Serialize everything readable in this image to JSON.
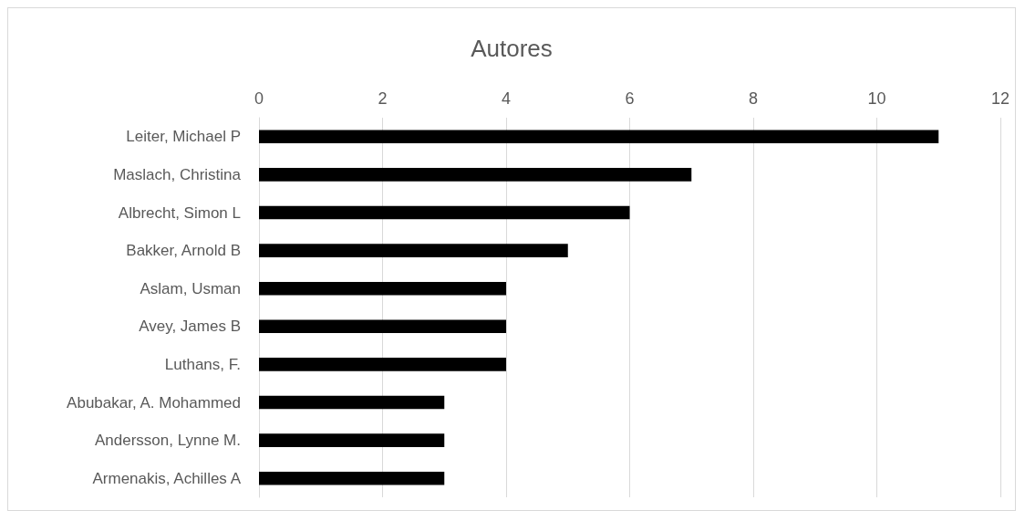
{
  "chart_data": {
    "type": "bar",
    "orientation": "horizontal",
    "title": "Autores",
    "categories": [
      "Leiter, Michael P",
      "Maslach, Christina",
      "Albrecht, Simon L",
      "Bakker, Arnold B",
      "Aslam, Usman",
      "Avey, James B",
      "Luthans, F.",
      "Abubakar, A. Mohammed",
      "Andersson, Lynne M.",
      "Armenakis, Achilles A"
    ],
    "values": [
      11,
      7,
      6,
      5,
      4,
      4,
      4,
      3,
      3,
      3
    ],
    "color": "#000000",
    "xlim": [
      0,
      12
    ],
    "xticks": [
      0,
      2,
      4,
      6,
      8,
      10,
      12
    ],
    "grid": "x"
  }
}
